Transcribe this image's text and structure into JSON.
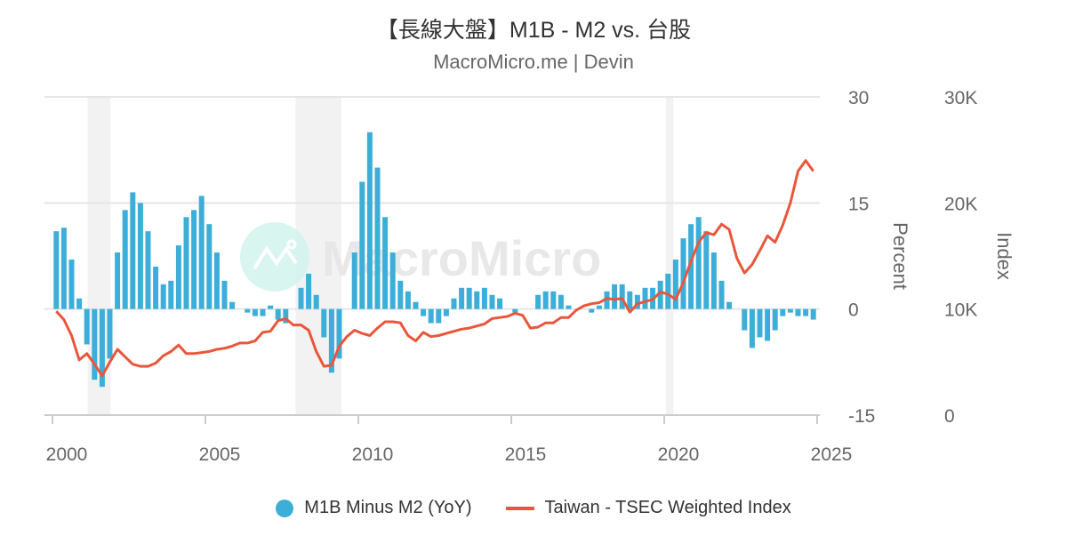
{
  "title": "【長線大盤】M1B - M2 vs. 台股",
  "subtitle": "MacroMicro.me | Devin",
  "watermark": "MacroMicro",
  "chart_data": {
    "type": "bar+line",
    "x_range": [
      2000,
      2025
    ],
    "x_ticks": [
      "2000",
      "2005",
      "2010",
      "2015",
      "2020",
      "2025"
    ],
    "left_axis": {
      "title": "Percent",
      "range": [
        -15,
        30
      ],
      "ticks": [
        "-15",
        "0",
        "15",
        "30"
      ]
    },
    "right_axis": {
      "title": "Index",
      "range": [
        0,
        30000
      ],
      "ticks": [
        "0",
        "10K",
        "20K",
        "30K"
      ]
    },
    "grid": true,
    "legend_placement": "bottom",
    "recession_bands": [
      [
        2001.15,
        2001.9
      ],
      [
        2007.95,
        2009.45
      ],
      [
        2020.05,
        2020.3
      ]
    ],
    "quarters_start": 2000,
    "series": [
      {
        "name": "M1B Minus M2 (YoY)",
        "type": "bar",
        "axis": "left",
        "color": "#3daed8",
        "values": [
          11,
          11.5,
          7,
          1.5,
          -5,
          -10,
          -11,
          -7,
          8,
          14,
          16.5,
          15,
          11,
          6,
          3.5,
          4,
          9,
          13,
          14,
          16,
          12,
          8,
          4,
          1,
          0,
          -0.5,
          -1,
          -1,
          0.5,
          -1.5,
          -2,
          0,
          3,
          5,
          2,
          -4,
          -9,
          -7,
          0,
          8,
          18,
          25,
          20,
          13,
          8,
          4,
          2.5,
          1,
          -1,
          -2,
          -2,
          -1,
          1.5,
          3,
          3,
          2.5,
          3,
          2,
          1.5,
          0,
          -0.5,
          0,
          0,
          2,
          2.5,
          2.5,
          2,
          0.5,
          0,
          0,
          -0.5,
          0.5,
          2.5,
          3.5,
          3.5,
          2.5,
          2,
          3,
          3,
          4,
          5,
          7,
          10,
          12,
          13,
          11,
          8,
          4,
          1,
          0,
          -3,
          -5.5,
          -4,
          -4.5,
          -3,
          -1,
          -0.5,
          -1,
          -1,
          -1.5
        ]
      },
      {
        "name": "Taiwan - TSEC Weighted Index",
        "type": "line",
        "axis": "right",
        "color": "#e9563b",
        "values": [
          9800,
          9000,
          7500,
          5200,
          5800,
          4800,
          3700,
          5000,
          6200,
          5500,
          4800,
          4600,
          4600,
          4900,
          5600,
          6000,
          6600,
          5800,
          5800,
          5900,
          6000,
          6200,
          6300,
          6500,
          6800,
          6800,
          7000,
          7800,
          7900,
          8900,
          9100,
          8500,
          8500,
          8000,
          6000,
          4600,
          4700,
          6500,
          7400,
          8000,
          7700,
          7500,
          8200,
          8800,
          8800,
          8700,
          7500,
          7000,
          7800,
          7400,
          7500,
          7700,
          7900,
          8100,
          8200,
          8400,
          8600,
          9100,
          9200,
          9300,
          9600,
          9400,
          8200,
          8300,
          8700,
          8700,
          9200,
          9200,
          9900,
          10300,
          10500,
          10600,
          11000,
          10900,
          11000,
          9700,
          10500,
          10700,
          10900,
          11600,
          11400,
          10900,
          12500,
          14500,
          16300,
          17200,
          17000,
          18000,
          17500,
          14800,
          13400,
          14200,
          15500,
          16900,
          16300,
          17900,
          20000,
          23000,
          24000,
          23000
        ]
      }
    ]
  }
}
